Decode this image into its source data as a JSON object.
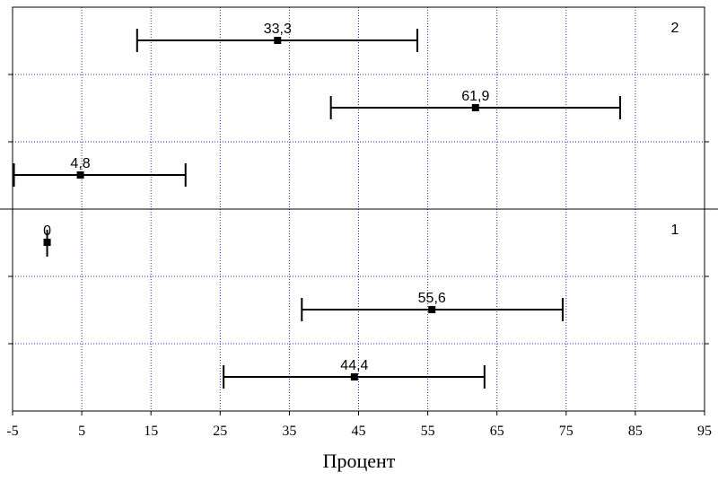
{
  "chart_data": {
    "type": "errorbar",
    "xlabel": "Процент",
    "xlim": [
      -5,
      95
    ],
    "xticks": [
      -5,
      5,
      15,
      25,
      35,
      45,
      55,
      65,
      75,
      85,
      95
    ],
    "grid": true,
    "panels": [
      {
        "label": "2",
        "points": [
          {
            "value": 33.3,
            "label": "33,3",
            "low": 13.0,
            "high": 53.5
          },
          {
            "value": 61.9,
            "label": "61,9",
            "low": 41.0,
            "high": 82.8
          },
          {
            "value": 4.8,
            "label": "4,8",
            "low": -4.8,
            "high": 20.0
          }
        ]
      },
      {
        "label": "1",
        "points": [
          {
            "value": 0,
            "label": "0",
            "low": 0,
            "high": 0
          },
          {
            "value": 55.6,
            "label": "55,6",
            "low": 36.8,
            "high": 74.5
          },
          {
            "value": 44.4,
            "label": "44,4",
            "low": 25.5,
            "high": 63.2
          }
        ]
      }
    ]
  }
}
